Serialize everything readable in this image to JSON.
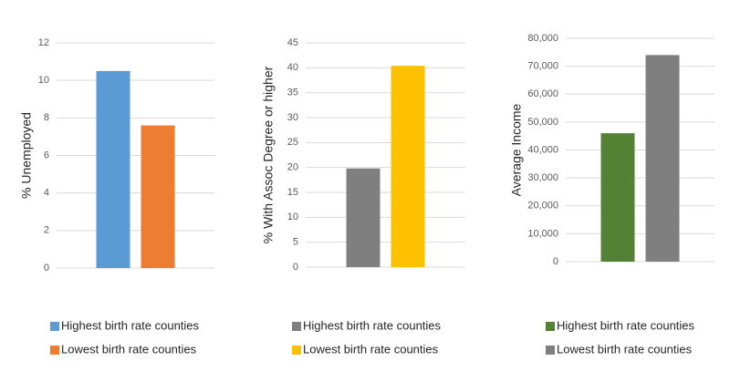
{
  "chart_data": [
    {
      "type": "bar",
      "y_label": "% Unemployed",
      "ylim": [
        0,
        12
      ],
      "yticks": [
        0,
        2,
        4,
        6,
        8,
        10,
        12
      ],
      "grid": true,
      "series": [
        {
          "name": "Highest birth rate counties",
          "color": "#5b9bd5",
          "values": [
            10.5
          ]
        },
        {
          "name": "Lowest birth rate counties",
          "color": "#ed7d31",
          "values": [
            7.6
          ]
        }
      ]
    },
    {
      "type": "bar",
      "y_label": "% With Assoc Degree or higher",
      "ylim": [
        0,
        45
      ],
      "yticks": [
        0,
        5,
        10,
        15,
        20,
        25,
        30,
        35,
        40,
        45
      ],
      "grid": true,
      "series": [
        {
          "name": "Highest birth rate counties",
          "color": "#7f7f7f",
          "values": [
            19.8
          ]
        },
        {
          "name": "Lowest birth rate counties",
          "color": "#ffc000",
          "values": [
            40.4
          ]
        }
      ]
    },
    {
      "type": "bar",
      "y_label": "Average Income",
      "ylim": [
        0,
        80000
      ],
      "yticks": [
        0,
        {
          "value": 10000,
          "label": "10,000"
        },
        {
          "value": 20000,
          "label": "20,000"
        },
        {
          "value": 30000,
          "label": "30,000"
        },
        {
          "value": 40000,
          "label": "40,000"
        },
        {
          "value": 50000,
          "label": "50,000"
        },
        {
          "value": 60000,
          "label": "60,000"
        },
        {
          "value": 70000,
          "label": "70,000"
        },
        {
          "value": 80000,
          "label": "80,000"
        }
      ],
      "grid": true,
      "series": [
        {
          "name": "Highest birth rate counties",
          "color": "#548235",
          "values": [
            46000
          ]
        },
        {
          "name": "Lowest birth rate counties",
          "color": "#7f7f7f",
          "values": [
            74000
          ]
        }
      ]
    }
  ]
}
